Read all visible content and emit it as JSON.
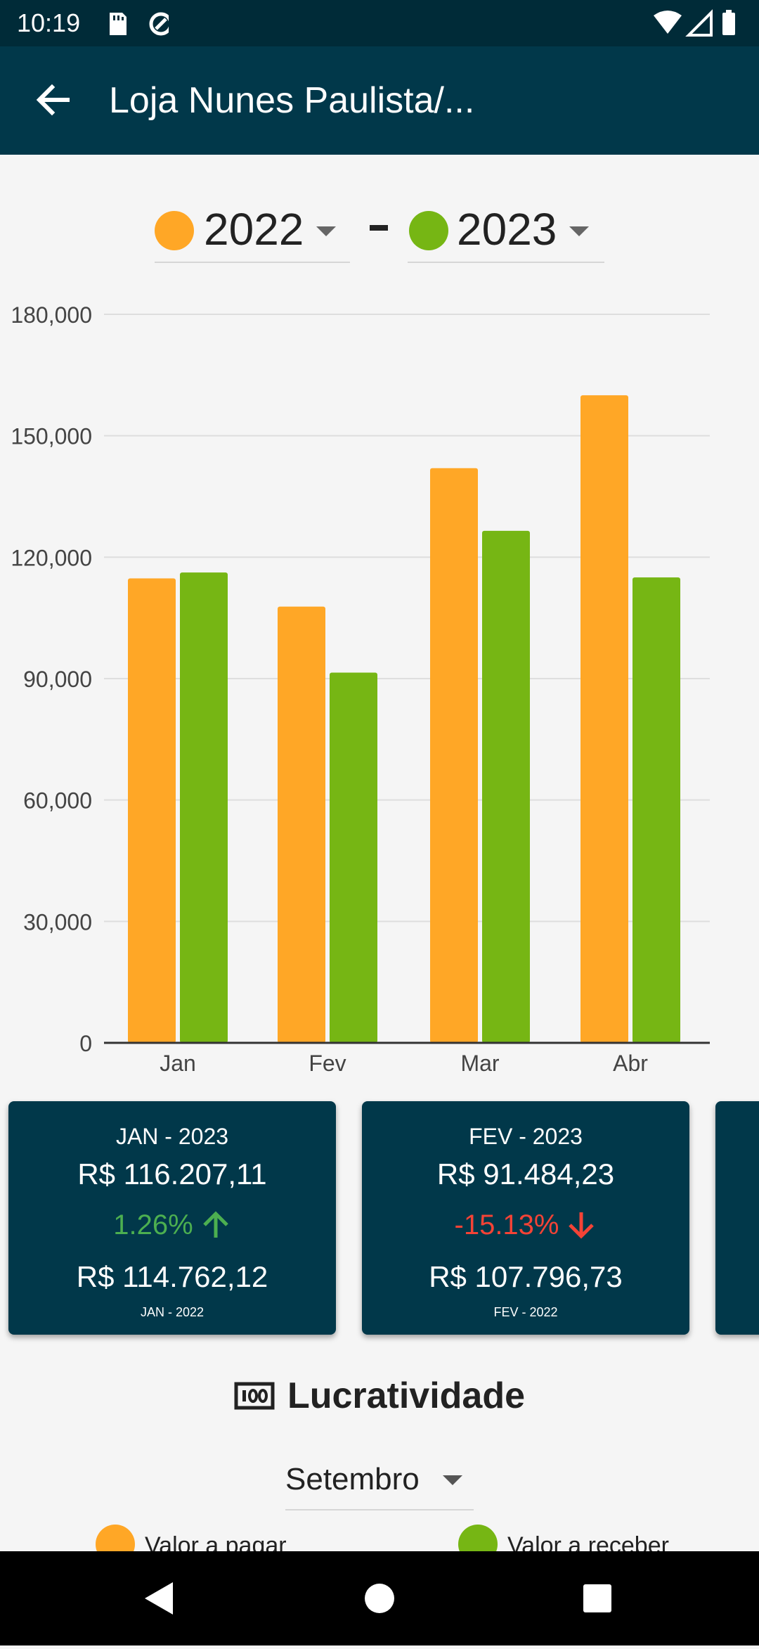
{
  "status_bar": {
    "time": "10:19"
  },
  "app_bar": {
    "title": "Loja Nunes Paulista/..."
  },
  "year_selectors": {
    "from": {
      "year": "2022",
      "color": "#ffa726"
    },
    "to": {
      "year": "2023",
      "color": "#76b614"
    }
  },
  "chart_data": {
    "type": "bar",
    "categories": [
      "Jan",
      "Fev",
      "Mar",
      "Abr"
    ],
    "series": [
      {
        "values": [
          114762.12,
          107796.73,
          142000,
          160000
        ],
        "color": "#ffa726"
      },
      {
        "values": [
          116207.11,
          91484.23,
          126500,
          115000
        ],
        "color": "#76b614"
      }
    ],
    "ylim": [
      0,
      180000
    ],
    "yticks": [
      "0",
      "30,000",
      "60,000",
      "90,000",
      "120,000",
      "150,000",
      "180,000"
    ],
    "ytick_values": [
      0,
      30000,
      60000,
      90000,
      120000,
      150000,
      180000
    ],
    "grid": true
  },
  "cards": [
    {
      "label": "JAN - 2023",
      "value": "R$ 116.207,11",
      "pct": "1.26%",
      "trend": "up",
      "trend_color": "#4caf50",
      "prev_value": "R$ 114.762,12",
      "prev_label": "JAN - 2022"
    },
    {
      "label": "FEV - 2023",
      "value": "R$ 91.484,23",
      "pct": "-15.13%",
      "trend": "down",
      "trend_color": "#f44336",
      "prev_value": "R$ 107.796,73",
      "prev_label": "FEV - 2022"
    }
  ],
  "lucratividade": {
    "title": "Lucratividade",
    "icon": "money-icon",
    "month": "Setembro",
    "legend": [
      {
        "label": "Valor a pagar",
        "color": "#ffa726"
      },
      {
        "label": "Valor a receber",
        "color": "#76b614"
      }
    ]
  },
  "nav_bar": {
    "icons": [
      "back-icon",
      "home-icon",
      "recents-icon"
    ]
  }
}
